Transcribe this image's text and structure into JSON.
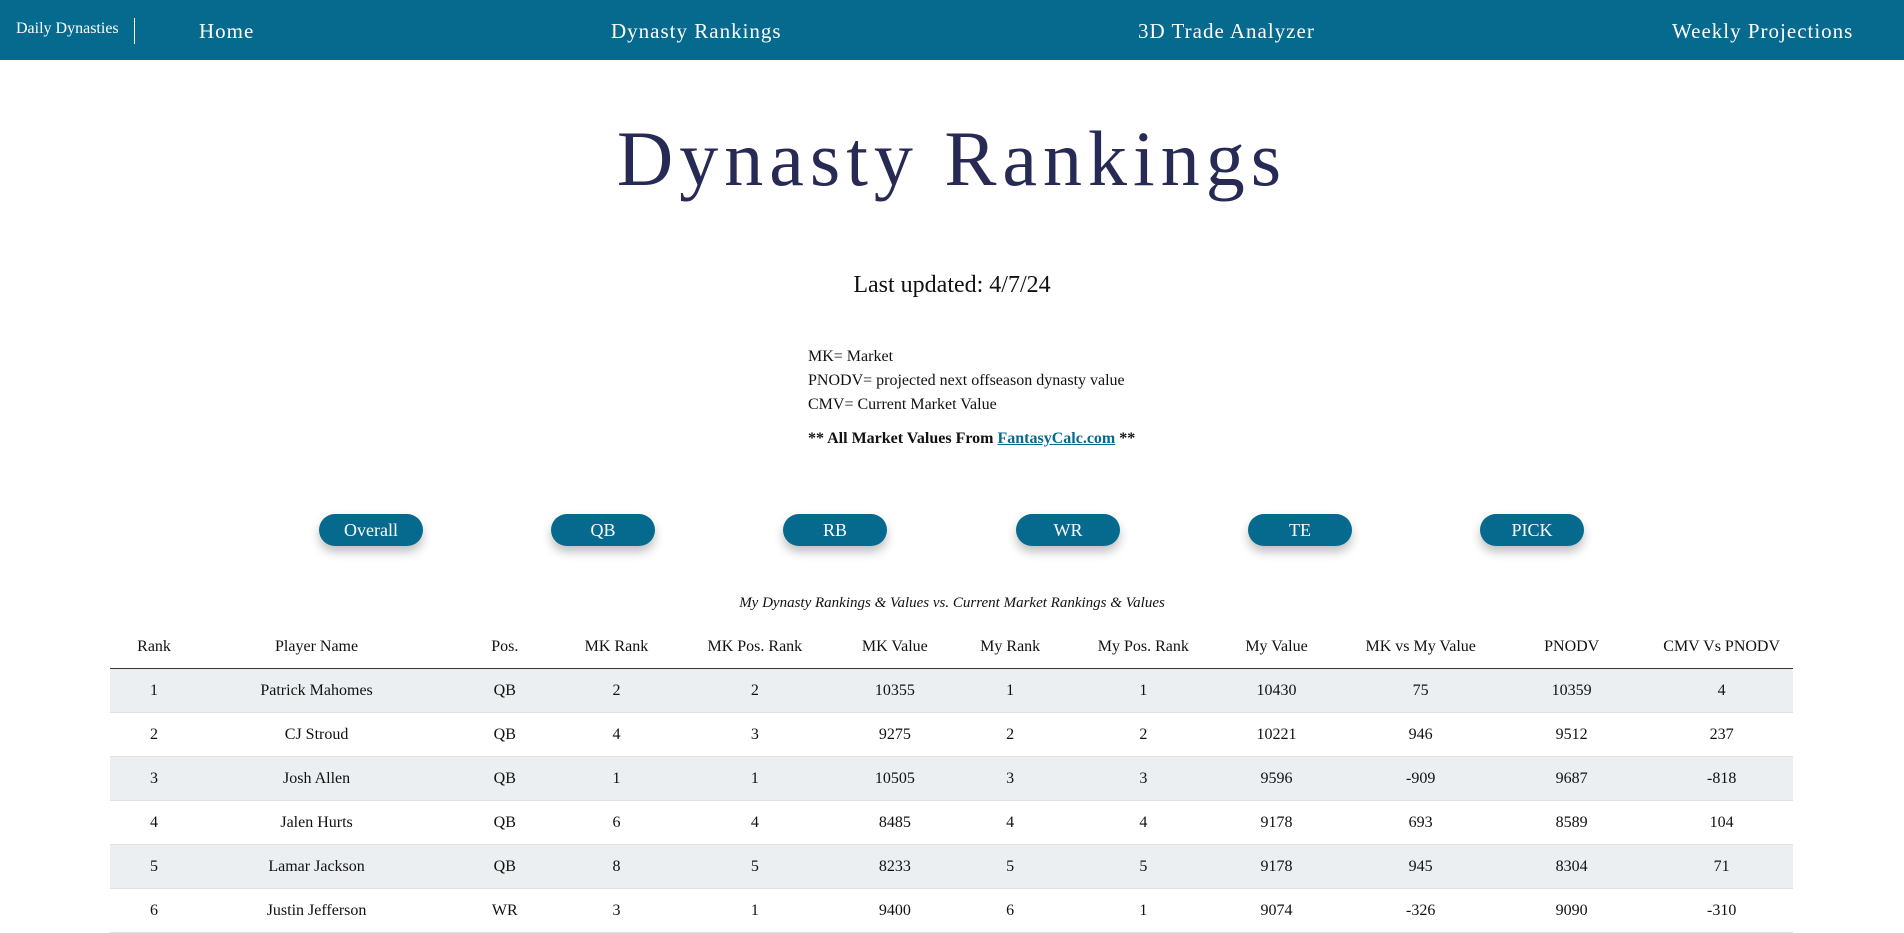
{
  "nav": {
    "brand": "Daily Dynasties",
    "links": [
      "Home",
      "Dynasty Rankings",
      "3D Trade Analyzer",
      "Weekly Projections"
    ]
  },
  "page": {
    "title": "Dynasty Rankings",
    "last_updated": "Last updated: 4/7/24"
  },
  "legend": {
    "mk": "MK= Market",
    "pnodv": "PNODV= projected next offseason dynasty value",
    "cmv": "CMV= Current Market Value",
    "note_prefix": "** All Market Values From ",
    "note_link": "FantasyCalc.com",
    "note_suffix": " **"
  },
  "filters": [
    "Overall",
    "QB",
    "RB",
    "WR",
    "TE",
    "PICK"
  ],
  "table": {
    "caption": "My Dynasty Rankings & Values vs. Current Market Rankings & Values",
    "headers": [
      "Rank",
      "Player Name",
      "Pos.",
      "MK Rank",
      "MK Pos. Rank",
      "MK Value",
      "My Rank",
      "My Pos. Rank",
      "My Value",
      "MK vs My Value",
      "PNODV",
      "CMV Vs PNODV"
    ],
    "rows": [
      [
        "1",
        "Patrick Mahomes",
        "QB",
        "2",
        "2",
        "10355",
        "1",
        "1",
        "10430",
        "75",
        "10359",
        "4"
      ],
      [
        "2",
        "CJ Stroud",
        "QB",
        "4",
        "3",
        "9275",
        "2",
        "2",
        "10221",
        "946",
        "9512",
        "237"
      ],
      [
        "3",
        "Josh Allen",
        "QB",
        "1",
        "1",
        "10505",
        "3",
        "3",
        "9596",
        "-909",
        "9687",
        "-818"
      ],
      [
        "4",
        "Jalen Hurts",
        "QB",
        "6",
        "4",
        "8485",
        "4",
        "4",
        "9178",
        "693",
        "8589",
        "104"
      ],
      [
        "5",
        "Lamar Jackson",
        "QB",
        "8",
        "5",
        "8233",
        "5",
        "5",
        "9178",
        "945",
        "8304",
        "71"
      ],
      [
        "6",
        "Justin Jefferson",
        "WR",
        "3",
        "1",
        "9400",
        "6",
        "1",
        "9074",
        "-326",
        "9090",
        "-310"
      ]
    ]
  }
}
